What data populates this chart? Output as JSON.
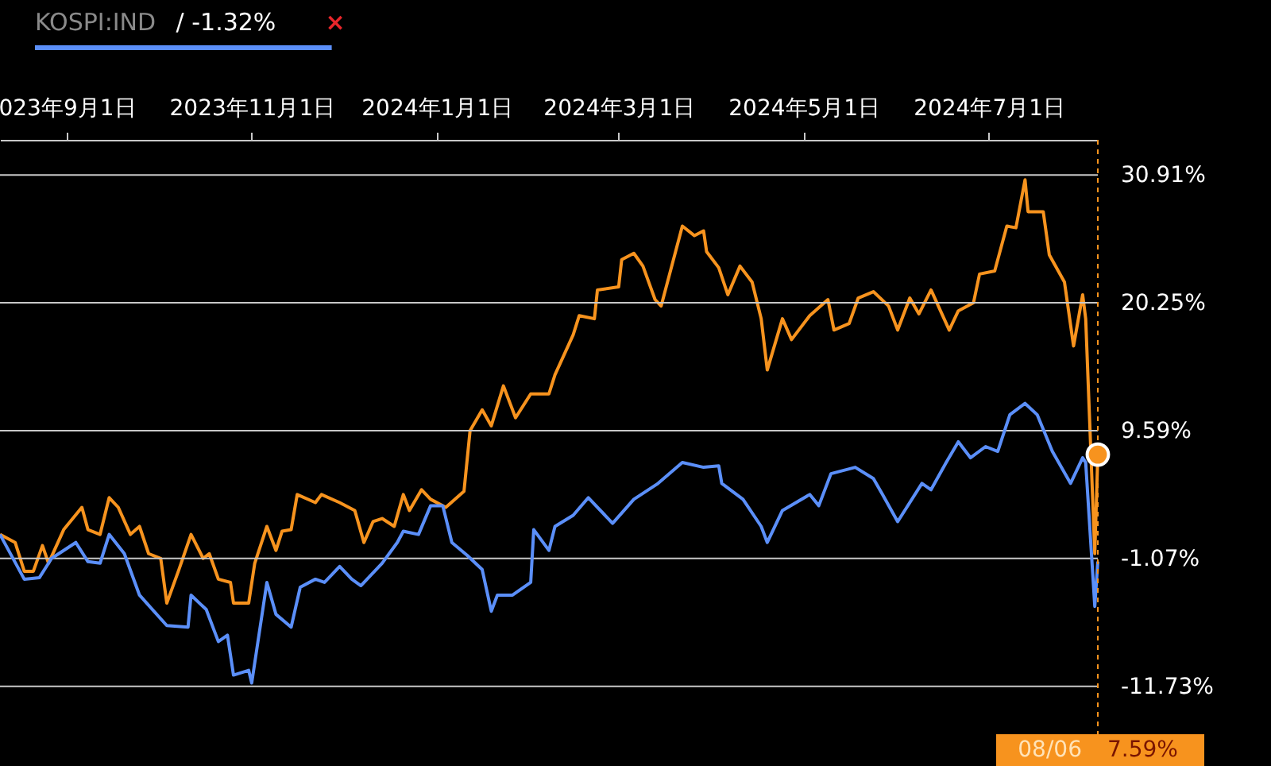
{
  "chart_data": {
    "type": "line",
    "xlim": [
      "2023-08-10",
      "2024-08-06"
    ],
    "xticks": [
      {
        "value": "2023-09-01",
        "label": "023年9月1日"
      },
      {
        "value": "2023-11-01",
        "label": "2023年11月1日"
      },
      {
        "value": "2024-01-01",
        "label": "2024年1月1日"
      },
      {
        "value": "2024-03-01",
        "label": "2024年3月1日"
      },
      {
        "value": "2024-05-01",
        "label": "2024年5月1日"
      },
      {
        "value": "2024-07-01",
        "label": "2024年7月1日"
      }
    ],
    "ylim": [
      -15.73,
      33.84
    ],
    "yticks": [
      {
        "value": 30.91,
        "label": "30.91%"
      },
      {
        "value": 20.25,
        "label": "20.25%"
      },
      {
        "value": 9.59,
        "label": "9.59%"
      },
      {
        "value": -1.07,
        "label": "-1.07%"
      },
      {
        "value": -11.73,
        "label": "-11.73%"
      }
    ],
    "grid": "y",
    "legend": "top left",
    "series": [
      {
        "color": "#f7931e",
        "x": [
          "2023-08-10",
          "2023-08-15",
          "2023-08-18",
          "2023-08-21",
          "2023-08-24",
          "2023-08-26",
          "2023-08-31",
          "2023-09-06",
          "2023-09-08",
          "2023-09-12",
          "2023-09-15",
          "2023-09-18",
          "2023-09-22",
          "2023-09-25",
          "2023-09-28",
          "2023-10-02",
          "2023-10-04",
          "2023-10-08",
          "2023-10-12",
          "2023-10-16",
          "2023-10-18",
          "2023-10-21",
          "2023-10-25",
          "2023-10-26",
          "2023-10-31",
          "2023-11-02",
          "2023-11-06",
          "2023-11-09",
          "2023-11-11",
          "2023-11-14",
          "2023-11-16",
          "2023-11-22",
          "2023-11-24",
          "2023-11-30",
          "2023-12-05",
          "2023-12-08",
          "2023-12-11",
          "2023-12-14",
          "2023-12-18",
          "2023-12-21",
          "2023-12-23",
          "2023-12-27",
          "2023-12-30",
          "2024-01-04",
          "2024-01-10",
          "2024-01-12",
          "2024-01-16",
          "2024-01-19",
          "2024-01-23",
          "2024-01-27",
          "2024-02-01",
          "2024-02-07",
          "2024-02-09",
          "2024-02-15",
          "2024-02-17",
          "2024-02-22",
          "2024-02-23",
          "2024-03-01",
          "2024-03-02",
          "2024-03-06",
          "2024-03-09",
          "2024-03-13",
          "2024-03-15",
          "2024-03-22",
          "2024-03-26",
          "2024-03-29",
          "2024-03-30",
          "2024-04-03",
          "2024-04-06",
          "2024-04-10",
          "2024-04-14",
          "2024-04-17",
          "2024-04-19",
          "2024-04-24",
          "2024-04-27",
          "2024-05-03",
          "2024-05-09",
          "2024-05-11",
          "2024-05-16",
          "2024-05-19",
          "2024-05-24",
          "2024-05-29",
          "2024-06-01",
          "2024-06-05",
          "2024-06-08",
          "2024-06-12",
          "2024-06-18",
          "2024-06-21",
          "2024-06-26",
          "2024-06-28",
          "2024-07-03",
          "2024-07-07",
          "2024-07-10",
          "2024-07-13",
          "2024-07-14",
          "2024-07-19",
          "2024-07-21",
          "2024-07-26",
          "2024-07-29",
          "2024-08-01",
          "2024-08-02",
          "2024-08-05",
          "2024-08-06"
        ],
        "values": [
          0.93,
          0.26,
          -2.14,
          -2.14,
          0.0,
          -1.47,
          1.33,
          3.19,
          1.33,
          0.93,
          4.0,
          3.19,
          0.93,
          1.6,
          -0.67,
          -1.07,
          -4.8,
          -2.0,
          0.93,
          -1.07,
          -0.67,
          -2.8,
          -3.07,
          -4.8,
          -4.8,
          -1.47,
          1.6,
          -0.4,
          1.2,
          1.33,
          4.26,
          3.59,
          4.26,
          3.59,
          2.93,
          0.26,
          2.0,
          2.26,
          1.6,
          4.26,
          2.93,
          4.66,
          3.86,
          3.19,
          4.53,
          9.59,
          11.32,
          9.99,
          13.32,
          10.66,
          12.65,
          12.65,
          14.25,
          17.58,
          19.18,
          18.92,
          21.32,
          21.58,
          23.85,
          24.38,
          23.31,
          20.52,
          19.98,
          26.65,
          25.85,
          26.25,
          24.51,
          23.18,
          20.92,
          23.31,
          21.98,
          18.92,
          14.65,
          18.92,
          17.18,
          19.18,
          20.52,
          17.98,
          18.52,
          20.65,
          21.18,
          19.98,
          17.98,
          20.65,
          19.32,
          21.32,
          17.98,
          19.58,
          20.25,
          22.65,
          22.91,
          26.65,
          26.51,
          30.51,
          27.85,
          27.85,
          24.25,
          21.98,
          16.65,
          20.92,
          18.92,
          -0.67,
          7.59
        ]
      },
      {
        "name": "KOSPI:IND",
        "color": "#5b8ff9",
        "x": [
          "2023-08-10",
          "2023-08-18",
          "2023-08-23",
          "2023-08-27",
          "2023-09-04",
          "2023-09-08",
          "2023-09-12",
          "2023-09-15",
          "2023-09-20",
          "2023-09-25",
          "2023-10-04",
          "2023-10-11",
          "2023-10-12",
          "2023-10-17",
          "2023-10-21",
          "2023-10-24",
          "2023-10-26",
          "2023-10-31",
          "2023-11-01",
          "2023-11-06",
          "2023-11-09",
          "2023-11-14",
          "2023-11-17",
          "2023-11-22",
          "2023-11-25",
          "2023-11-30",
          "2023-12-04",
          "2023-12-07",
          "2023-12-14",
          "2023-12-19",
          "2023-12-21",
          "2023-12-26",
          "2023-12-30",
          "2024-01-03",
          "2024-01-06",
          "2024-01-11",
          "2024-01-16",
          "2024-01-19",
          "2024-01-21",
          "2024-01-26",
          "2024-02-01",
          "2024-02-02",
          "2024-02-07",
          "2024-02-09",
          "2024-02-15",
          "2024-02-20",
          "2024-02-28",
          "2024-03-06",
          "2024-03-14",
          "2024-03-22",
          "2024-03-29",
          "2024-04-03",
          "2024-04-04",
          "2024-04-11",
          "2024-04-17",
          "2024-04-19",
          "2024-04-24",
          "2024-05-03",
          "2024-05-06",
          "2024-05-10",
          "2024-05-18",
          "2024-05-24",
          "2024-05-27",
          "2024-06-01",
          "2024-06-09",
          "2024-06-12",
          "2024-06-17",
          "2024-06-21",
          "2024-06-25",
          "2024-06-30",
          "2024-07-04",
          "2024-07-08",
          "2024-07-13",
          "2024-07-17",
          "2024-07-22",
          "2024-07-28",
          "2024-08-01",
          "2024-08-02",
          "2024-08-05",
          "2024-08-06"
        ],
        "values": [
          0.93,
          -2.8,
          -2.67,
          -1.07,
          0.26,
          -1.34,
          -1.47,
          0.93,
          -0.67,
          -4.13,
          -6.67,
          -6.8,
          -4.13,
          -5.33,
          -8.0,
          -7.47,
          -10.8,
          -10.4,
          -11.46,
          -3.07,
          -5.73,
          -6.8,
          -3.47,
          -2.8,
          -3.07,
          -1.74,
          -2.8,
          -3.34,
          -1.47,
          0.26,
          1.2,
          0.93,
          3.33,
          3.33,
          0.26,
          -0.8,
          -2.0,
          -5.47,
          -4.13,
          -4.13,
          -3.07,
          1.33,
          -0.4,
          1.6,
          2.53,
          4.0,
          1.86,
          3.86,
          5.19,
          6.93,
          6.53,
          6.66,
          5.19,
          3.86,
          1.6,
          0.26,
          2.93,
          4.26,
          3.33,
          6.0,
          6.53,
          5.59,
          4.26,
          2.0,
          5.19,
          4.66,
          6.93,
          8.66,
          7.33,
          8.26,
          7.86,
          10.92,
          11.86,
          10.92,
          7.86,
          5.19,
          7.33,
          6.93,
          -5.07,
          -1.32
        ]
      }
    ],
    "ref_lines": [
      {
        "axis": "x",
        "value": "2024-08-06",
        "color": "#f7931e",
        "line_style": "dashed"
      }
    ],
    "annotations": [
      "/ -1.32%",
      "×",
      "08/06",
      "7.59%"
    ]
  }
}
